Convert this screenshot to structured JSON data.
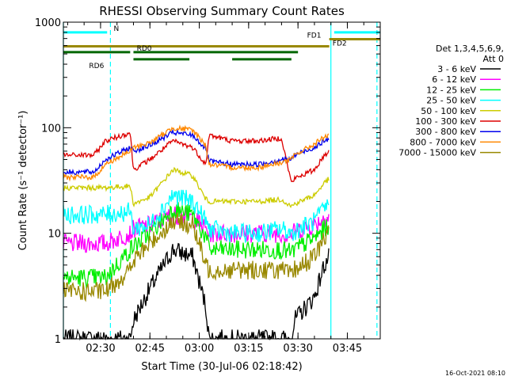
{
  "chart_data": {
    "type": "line",
    "title": "RHESSI Observing Summary Count Rates",
    "xlabel": "Start Time (30-Jul-06 02:18:42)",
    "ylabel": "Count Rate (s⁻¹ detector⁻¹)",
    "y_scale": "log",
    "ylim": [
      1,
      1000
    ],
    "xlim": [
      "02:18:42",
      "03:55:00"
    ],
    "x_ticks": [
      "02:30",
      "02:45",
      "03:00",
      "03:15",
      "03:30",
      "03:45"
    ],
    "y_ticks": [
      "1",
      "10",
      "100",
      "1000"
    ],
    "timestamp": "16-Oct-2021 08:10",
    "legend": {
      "header": [
        "Det 1,3,4,5,6,9,",
        "Att 0"
      ],
      "placement": "right",
      "entries": [
        {
          "label": "3 - 6 keV",
          "color": "#000000"
        },
        {
          "label": "6 - 12 keV",
          "color": "#ff00ff"
        },
        {
          "label": "12 - 25 keV",
          "color": "#00ee00"
        },
        {
          "label": "25 - 50 keV",
          "color": "#00ffff"
        },
        {
          "label": "50 - 100 keV",
          "color": "#cccc00"
        },
        {
          "label": "100 - 300 keV",
          "color": "#dd0000"
        },
        {
          "label": "300 - 800 keV",
          "color": "#0000ee"
        },
        {
          "label": "800 - 7000 keV",
          "color": "#ff8800"
        },
        {
          "label": "7000 - 15000 keV",
          "color": "#998800"
        }
      ]
    },
    "x_breakpoints": [
      "02:18:42",
      "02:28:00",
      "02:31:30",
      "02:39:00",
      "02:40:00",
      "02:45:00",
      "02:52:00",
      "02:58:00",
      "03:02:00",
      "03:03:00",
      "03:10:00",
      "03:18:00",
      "03:25:00",
      "03:28:00",
      "03:29:00",
      "03:35:00",
      "03:38:00",
      "03:39:30"
    ],
    "series": [
      {
        "name": "3 - 6 keV",
        "color": "#000000",
        "values": [
          1.0,
          1.0,
          1.0,
          1.0,
          1.5,
          3.0,
          7.0,
          6.0,
          2.0,
          1.0,
          1.0,
          1.0,
          1.0,
          1.0,
          1.5,
          2.5,
          5.0,
          6.0
        ]
      },
      {
        "name": "6 - 12 keV",
        "color": "#ff00ff",
        "values": [
          8.0,
          8.0,
          8.0,
          10.0,
          11.0,
          12.0,
          15.0,
          14.0,
          11.0,
          10.0,
          10.0,
          10.0,
          10.0,
          9.5,
          10.5,
          12.0,
          14.0,
          15.0
        ]
      },
      {
        "name": "12 - 25 keV",
        "color": "#00ee00",
        "values": [
          3.8,
          3.8,
          3.8,
          7.0,
          7.5,
          10.0,
          17.0,
          15.0,
          9.0,
          7.0,
          7.0,
          7.0,
          7.0,
          6.5,
          7.0,
          9.0,
          11.0,
          12.0
        ]
      },
      {
        "name": "25 - 50 keV",
        "color": "#00ffff",
        "values": [
          15.0,
          15.0,
          15.0,
          16.0,
          11.0,
          12.0,
          23.0,
          20.0,
          13.0,
          11.0,
          10.0,
          10.0,
          11.0,
          10.0,
          10.5,
          13.0,
          17.0,
          19.0
        ]
      },
      {
        "name": "50 - 100 keV",
        "color": "#cccc00",
        "values": [
          27.0,
          27.0,
          27.0,
          28.0,
          19.0,
          22.0,
          40.0,
          35.0,
          21.0,
          20.0,
          20.0,
          20.0,
          21.0,
          18.0,
          19.0,
          23.0,
          30.0,
          33.0
        ]
      },
      {
        "name": "100 - 300 keV",
        "color": "#dd0000",
        "values": [
          55.0,
          55.0,
          75.0,
          90.0,
          40.0,
          50.0,
          75.0,
          65.0,
          45.0,
          85.0,
          75.0,
          75.0,
          80.0,
          30.0,
          33.0,
          40.0,
          55.0,
          60.0
        ]
      },
      {
        "name": "300 - 800 keV",
        "color": "#0000ee",
        "values": [
          38.0,
          38.0,
          50.0,
          65.0,
          60.0,
          68.0,
          90.0,
          85.0,
          63.0,
          48.0,
          45.0,
          45.0,
          50.0,
          50.0,
          55.0,
          65.0,
          75.0,
          78.0
        ]
      },
      {
        "name": "800 - 7000 keV",
        "color": "#ff8800",
        "values": [
          34.0,
          34.0,
          45.0,
          60.0,
          65.0,
          72.0,
          100.0,
          95.0,
          68.0,
          45.0,
          42.0,
          42.0,
          47.0,
          50.0,
          55.0,
          70.0,
          82.0,
          85.0
        ]
      },
      {
        "name": "7000 - 15000 keV",
        "color": "#998800",
        "values": [
          2.8,
          2.8,
          2.8,
          4.5,
          5.5,
          8.0,
          13.0,
          12.0,
          5.0,
          4.5,
          4.5,
          4.5,
          4.5,
          4.0,
          4.5,
          6.0,
          9.0,
          10.0
        ]
      }
    ],
    "flags": [
      {
        "label": "N",
        "color": "#00ffff",
        "level": 800,
        "segments": [
          [
            "02:18:42",
            "02:32:00"
          ],
          [
            "03:41:00",
            "03:55:00"
          ]
        ]
      },
      {
        "label": "FD1",
        "color": "#998800",
        "level": 690,
        "segments": [
          [
            "03:39:30",
            "03:55:00"
          ]
        ]
      },
      {
        "label": "FD2",
        "color": "#998800",
        "level": 590,
        "segments": [
          [
            "02:18:42",
            "03:39:30"
          ]
        ]
      },
      {
        "label": "RD0",
        "color": "#006600",
        "level": 520,
        "segments": [
          [
            "02:18:42",
            "02:39:00"
          ],
          [
            "02:40:00",
            "03:30:00"
          ]
        ]
      },
      {
        "label": "RD6",
        "color": "#006600",
        "level": 445,
        "segments": [
          [
            "02:40:00",
            "02:57:00"
          ],
          [
            "03:10:00",
            "03:28:00"
          ]
        ]
      }
    ],
    "vertical_markers": [
      {
        "time": "02:18:42",
        "style": "solid",
        "color": "#00ffff"
      },
      {
        "time": "02:33:00",
        "style": "dashed",
        "color": "#00ffff"
      },
      {
        "time": "03:40:00",
        "style": "solid",
        "color": "#00ffff"
      },
      {
        "time": "03:54:00",
        "style": "dashed",
        "color": "#00ffff"
      }
    ]
  }
}
